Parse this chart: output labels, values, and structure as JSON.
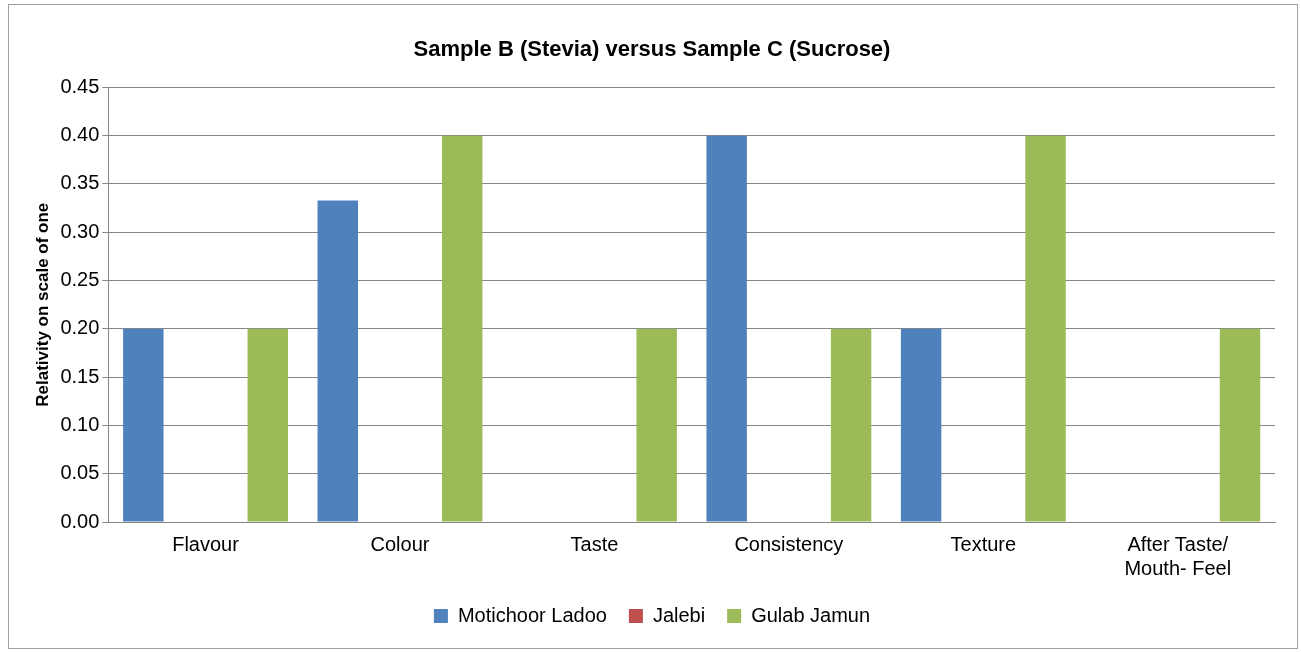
{
  "chart_data": {
    "type": "bar",
    "title": "Sample B (Stevia) versus Sample C (Sucrose)",
    "ylabel": "Relativity on scale of one",
    "categories": [
      "Flavour",
      "Colour",
      "Taste",
      "Consistency",
      "Texture",
      "After Taste/ Mouth- Feel"
    ],
    "series": [
      {
        "name": "Motichoor Ladoo",
        "color": "#4f81bd",
        "values": [
          0.2,
          0.333,
          0,
          0.4,
          0.2,
          0
        ]
      },
      {
        "name": "Jalebi",
        "color": "#c0504d",
        "values": [
          0,
          0,
          0,
          0,
          0,
          0
        ]
      },
      {
        "name": "Gulab Jamun",
        "color": "#9bbb59",
        "values": [
          0.2,
          0.4,
          0.2,
          0.2,
          0.4,
          0.2
        ]
      }
    ],
    "ylim": [
      0,
      0.45
    ],
    "yticks": [
      {
        "value": 0,
        "label": "0.00"
      },
      {
        "value": 0.05,
        "label": "0.05"
      },
      {
        "value": 0.1,
        "label": "0.10"
      },
      {
        "value": 0.15,
        "label": "0.15"
      },
      {
        "value": 0.2,
        "label": "0.20"
      },
      {
        "value": 0.25,
        "label": "0.25"
      },
      {
        "value": 0.3,
        "label": "0.30"
      },
      {
        "value": 0.35,
        "label": "0.35"
      },
      {
        "value": 0.4,
        "label": "0.40"
      },
      {
        "value": 0.45,
        "label": "0.45"
      }
    ],
    "grid": "y",
    "legend": "bottom"
  }
}
